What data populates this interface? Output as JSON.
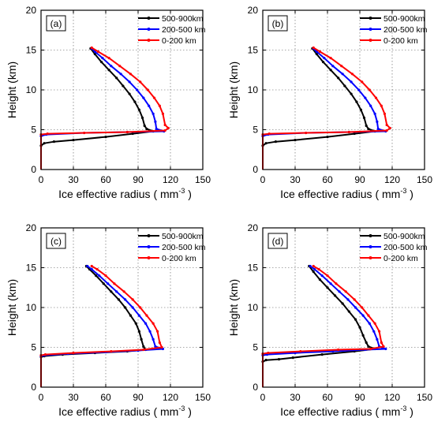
{
  "chart_data": [
    {
      "type": "line",
      "panel_label": "(a)",
      "xlabel": "Ice effective radius",
      "xlabel_unit_base": "mm",
      "xlabel_unit_exp": "-3",
      "ylabel": "Height (km)",
      "xlim": [
        0,
        150
      ],
      "ylim": [
        0,
        20
      ],
      "xticks": [
        0,
        30,
        60,
        90,
        120,
        150
      ],
      "yticks": [
        0,
        5,
        10,
        15,
        20
      ],
      "grid": true,
      "legend": "top-right",
      "series": [
        {
          "name": "500-900km",
          "color": "#000000",
          "points": [
            [
              0,
              0
            ],
            [
              0,
              3
            ],
            [
              3,
              3.3
            ],
            [
              12,
              3.5
            ],
            [
              30,
              3.7
            ],
            [
              60,
              4.1
            ],
            [
              85,
              4.5
            ],
            [
              104,
              4.8
            ],
            [
              98,
              5.1
            ],
            [
              96,
              5.5
            ],
            [
              94,
              6.5
            ],
            [
              91,
              7.5
            ],
            [
              87,
              8.5
            ],
            [
              82,
              9.5
            ],
            [
              76,
              10.5
            ],
            [
              70,
              11.5
            ],
            [
              63,
              12.5
            ],
            [
              56,
              13.5
            ],
            [
              50,
              14.5
            ],
            [
              46,
              15.2
            ]
          ]
        },
        {
          "name": "200-500 km",
          "color": "#0000ff",
          "points": [
            [
              0,
              0
            ],
            [
              0,
              4.2
            ],
            [
              5,
              4.4
            ],
            [
              40,
              4.6
            ],
            [
              80,
              4.7
            ],
            [
              114,
              4.8
            ],
            [
              107,
              5.1
            ],
            [
              106,
              6
            ],
            [
              104,
              7
            ],
            [
              100,
              8
            ],
            [
              95,
              9
            ],
            [
              89,
              10
            ],
            [
              82,
              11
            ],
            [
              74,
              12
            ],
            [
              65,
              13
            ],
            [
              57,
              14
            ],
            [
              50,
              14.8
            ],
            [
              47,
              15.2
            ]
          ]
        },
        {
          "name": "0-200 km",
          "color": "#ff0000",
          "points": [
            [
              0,
              0
            ],
            [
              0,
              4.4
            ],
            [
              6,
              4.5
            ],
            [
              40,
              4.6
            ],
            [
              80,
              4.7
            ],
            [
              115,
              4.9
            ],
            [
              118,
              5.2
            ],
            [
              115,
              5.6
            ],
            [
              113,
              7
            ],
            [
              110,
              8
            ],
            [
              105,
              9
            ],
            [
              99,
              10
            ],
            [
              92,
              11
            ],
            [
              83,
              12
            ],
            [
              73,
              13
            ],
            [
              63,
              14
            ],
            [
              53,
              14.8
            ],
            [
              47,
              15.3
            ]
          ]
        }
      ]
    },
    {
      "type": "line",
      "panel_label": "(b)",
      "xlabel": "Ice effective radius",
      "xlabel_unit_base": "mm",
      "xlabel_unit_exp": "-3",
      "ylabel": "Height (km)",
      "xlim": [
        0,
        150
      ],
      "ylim": [
        0,
        20
      ],
      "xticks": [
        0,
        30,
        60,
        90,
        120,
        150
      ],
      "yticks": [
        0,
        5,
        10,
        15,
        20
      ],
      "grid": true,
      "legend": "top-right",
      "series": [
        {
          "name": "500-900km",
          "color": "#000000",
          "points": [
            [
              0,
              0
            ],
            [
              0,
              3
            ],
            [
              3,
              3.3
            ],
            [
              12,
              3.5
            ],
            [
              30,
              3.7
            ],
            [
              60,
              4.1
            ],
            [
              85,
              4.5
            ],
            [
              104,
              4.8
            ],
            [
              98,
              5.1
            ],
            [
              96,
              5.5
            ],
            [
              94,
              6.5
            ],
            [
              91,
              7.5
            ],
            [
              87,
              8.5
            ],
            [
              82,
              9.5
            ],
            [
              76,
              10.5
            ],
            [
              70,
              11.5
            ],
            [
              63,
              12.5
            ],
            [
              56,
              13.5
            ],
            [
              50,
              14.5
            ],
            [
              46,
              15.2
            ]
          ]
        },
        {
          "name": "200-500 km",
          "color": "#0000ff",
          "points": [
            [
              0,
              0
            ],
            [
              0,
              4.2
            ],
            [
              5,
              4.4
            ],
            [
              40,
              4.6
            ],
            [
              80,
              4.7
            ],
            [
              114,
              4.8
            ],
            [
              107,
              5.1
            ],
            [
              106,
              6
            ],
            [
              104,
              7
            ],
            [
              100,
              8
            ],
            [
              95,
              9
            ],
            [
              89,
              10
            ],
            [
              82,
              11
            ],
            [
              74,
              12
            ],
            [
              65,
              13
            ],
            [
              57,
              14
            ],
            [
              50,
              14.8
            ],
            [
              47,
              15.2
            ]
          ]
        },
        {
          "name": "0-200 km",
          "color": "#ff0000",
          "points": [
            [
              0,
              0
            ],
            [
              0,
              4.4
            ],
            [
              6,
              4.5
            ],
            [
              40,
              4.6
            ],
            [
              80,
              4.7
            ],
            [
              115,
              4.9
            ],
            [
              118,
              5.2
            ],
            [
              115,
              5.6
            ],
            [
              113,
              7
            ],
            [
              110,
              8
            ],
            [
              105,
              9
            ],
            [
              99,
              10
            ],
            [
              92,
              11
            ],
            [
              83,
              12
            ],
            [
              73,
              13
            ],
            [
              63,
              14
            ],
            [
              53,
              14.8
            ],
            [
              47,
              15.3
            ]
          ]
        }
      ]
    },
    {
      "type": "line",
      "panel_label": "(c)",
      "xlabel": "Ice effective radius",
      "xlabel_unit_base": "mm",
      "xlabel_unit_exp": "-3",
      "ylabel": "Height (km)",
      "xlim": [
        0,
        150
      ],
      "ylim": [
        0,
        20
      ],
      "xticks": [
        0,
        30,
        60,
        90,
        120,
        150
      ],
      "yticks": [
        0,
        5,
        10,
        15,
        20
      ],
      "grid": true,
      "legend": "top-right",
      "series": [
        {
          "name": "500-900km",
          "color": "#000000",
          "points": [
            [
              0,
              0
            ],
            [
              0,
              3.8
            ],
            [
              3,
              3.9
            ],
            [
              20,
              4.1
            ],
            [
              50,
              4.3
            ],
            [
              80,
              4.5
            ],
            [
              97,
              4.7
            ],
            [
              95,
              5.1
            ],
            [
              93,
              6
            ],
            [
              91,
              7
            ],
            [
              88,
              8
            ],
            [
              83,
              9
            ],
            [
              78,
              10
            ],
            [
              72,
              11
            ],
            [
              65,
              12
            ],
            [
              58,
              13
            ],
            [
              51,
              14
            ],
            [
              45,
              14.8
            ],
            [
              42,
              15.2
            ]
          ]
        },
        {
          "name": "200-500 km",
          "color": "#0000ff",
          "points": [
            [
              0,
              0
            ],
            [
              0,
              3.9
            ],
            [
              3,
              4
            ],
            [
              25,
              4.2
            ],
            [
              60,
              4.4
            ],
            [
              90,
              4.6
            ],
            [
              113,
              4.8
            ],
            [
              106,
              5.1
            ],
            [
              104,
              6
            ],
            [
              101,
              7
            ],
            [
              97,
              8
            ],
            [
              91,
              9
            ],
            [
              85,
              10
            ],
            [
              78,
              11
            ],
            [
              70,
              12
            ],
            [
              62,
              13
            ],
            [
              54,
              14
            ],
            [
              47,
              14.8
            ],
            [
              43,
              15.2
            ]
          ]
        },
        {
          "name": "0-200 km",
          "color": "#ff0000",
          "points": [
            [
              0,
              0
            ],
            [
              0,
              4
            ],
            [
              4,
              4.1
            ],
            [
              30,
              4.3
            ],
            [
              65,
              4.5
            ],
            [
              95,
              4.7
            ],
            [
              112,
              5
            ],
            [
              110,
              5.6
            ],
            [
              108,
              7
            ],
            [
              104,
              8
            ],
            [
              98,
              9
            ],
            [
              92,
              10
            ],
            [
              85,
              11
            ],
            [
              77,
              12
            ],
            [
              68,
              13
            ],
            [
              60,
              14
            ],
            [
              52,
              14.8
            ],
            [
              47,
              15.2
            ]
          ]
        }
      ]
    },
    {
      "type": "line",
      "panel_label": "(d)",
      "xlabel": "Ice effective radius",
      "xlabel_unit_base": "mm",
      "xlabel_unit_exp": "-3",
      "ylabel": "Height (km)",
      "xlim": [
        0,
        150
      ],
      "ylim": [
        0,
        20
      ],
      "xticks": [
        0,
        30,
        60,
        90,
        120,
        150
      ],
      "yticks": [
        0,
        5,
        10,
        15,
        20
      ],
      "grid": true,
      "legend": "top-right",
      "series": [
        {
          "name": "500-900km",
          "color": "#000000",
          "points": [
            [
              0,
              0
            ],
            [
              0,
              3.2
            ],
            [
              3,
              3.4
            ],
            [
              15,
              3.5
            ],
            [
              28,
              3.7
            ],
            [
              55,
              4.1
            ],
            [
              85,
              4.5
            ],
            [
              104,
              4.8
            ],
            [
              98,
              5.1
            ],
            [
              96,
              5.6
            ],
            [
              93,
              6.5
            ],
            [
              90,
              7.5
            ],
            [
              86,
              8.5
            ],
            [
              80,
              9.5
            ],
            [
              74,
              10.5
            ],
            [
              67,
              11.5
            ],
            [
              60,
              12.5
            ],
            [
              53,
              13.5
            ],
            [
              47,
              14.5
            ],
            [
              43,
              15.2
            ]
          ]
        },
        {
          "name": "200-500 km",
          "color": "#0000ff",
          "points": [
            [
              0,
              0
            ],
            [
              0,
              4
            ],
            [
              4,
              4.1
            ],
            [
              30,
              4.3
            ],
            [
              65,
              4.5
            ],
            [
              95,
              4.7
            ],
            [
              114,
              4.8
            ],
            [
              108,
              5.1
            ],
            [
              106,
              6
            ],
            [
              103,
              7
            ],
            [
              99,
              8
            ],
            [
              93,
              9
            ],
            [
              86,
              10
            ],
            [
              79,
              11
            ],
            [
              71,
              12
            ],
            [
              63,
              13
            ],
            [
              55,
              14
            ],
            [
              48,
              14.8
            ],
            [
              44,
              15.2
            ]
          ]
        },
        {
          "name": "0-200 km",
          "color": "#ff0000",
          "points": [
            [
              0,
              0
            ],
            [
              0,
              4.2
            ],
            [
              5,
              4.3
            ],
            [
              35,
              4.5
            ],
            [
              70,
              4.7
            ],
            [
              100,
              4.8
            ],
            [
              112,
              5.1
            ],
            [
              110,
              5.6
            ],
            [
              108,
              7
            ],
            [
              104,
              8
            ],
            [
              98,
              9
            ],
            [
              92,
              10
            ],
            [
              85,
              11
            ],
            [
              77,
              12
            ],
            [
              68,
              13
            ],
            [
              60,
              14
            ],
            [
              52,
              14.8
            ],
            [
              47,
              15.2
            ]
          ]
        }
      ]
    }
  ]
}
